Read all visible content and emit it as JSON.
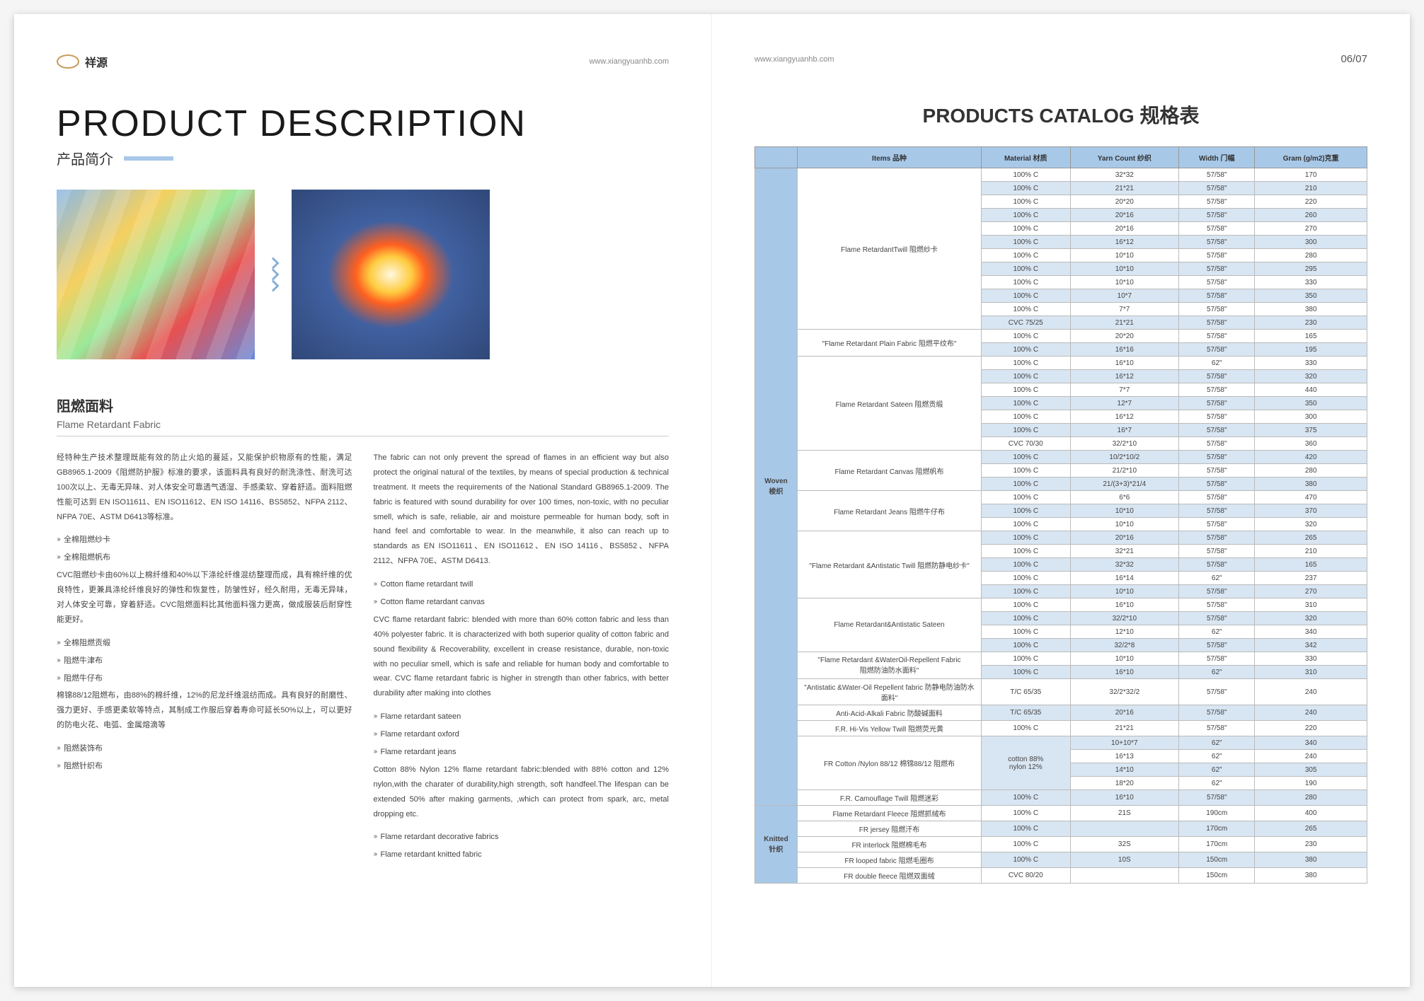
{
  "header": {
    "brand": "祥源",
    "url": "www.xiangyuanhb.com",
    "pagenum": "06/07"
  },
  "left": {
    "title_en": "PRODUCT DESCRIPTION",
    "title_cn": "产品简介",
    "sub_cn": "阻燃面料",
    "sub_en": "Flame Retardant Fabric",
    "col1_para": "经特种生产技术整理既能有效的防止火焰的蔓延，又能保护织物原有的性能，满足GB8965.1-2009《阻燃防护服》标准的要求，该面料具有良好的耐洗涤性、耐洗可达100次以上、无毒无异味、对人体安全可靠透气透湿、手感柔软、穿着舒适。面料阻燃性能可达到 EN ISO11611、EN ISO11612、EN ISO 14116、BS5852、NFPA 2112、NFPA 70E、ASTM D6413等标准。",
    "col1_bullets": [
      "全棉阻燃纱卡",
      "全棉阻燃帆布"
    ],
    "col1_para2": "CVC阻燃纱卡由60%以上棉纤维和40%以下涤纶纤维混纺整理而成，具有棉纤维的优良特性，更兼具涤纶纤维良好的弹性和恢复性，防皱性好，经久耐用，无毒无异味，对人体安全可靠，穿着舒适。CVC阻燃面料比其他面料强力更高，做成服装后耐穿性能更好。",
    "col1_bullets2": [
      "全棉阻燃贡缎",
      "阻燃牛津布",
      "阻燃牛仔布"
    ],
    "col1_para3": "棉锦88/12阻燃布，由88%的棉纤维，12%的尼龙纤维混纺而成。具有良好的耐磨性、强力更好、手感更柔软等特点，其制成工作服后穿着寿命可延长50%以上，可以更好的防电火花、电弧、金属熔滴等",
    "col1_bullets3": [
      "阻燃装饰布",
      "阻燃针织布"
    ],
    "col2_para": "The fabric can not only prevent the spread of flames in an efficient way but also protect the original natural of the textiles, by means of special production & technical treatment. It meets the requirements of the National Standard GB8965.1-2009. The fabric is featured with sound durability for over 100 times, non-toxic, with no peculiar smell, which is safe, reliable, air and moisture permeable for human body, soft in hand feel and comfortable to wear. In the meanwhile, it also can reach up to standards as EN ISO11611、EN ISO11612、EN ISO 14116、BS5852、NFPA 2112、NFPA 70E、ASTM D6413.",
    "col2_bullets": [
      "Cotton flame retardant twill",
      "Cotton flame retardant canvas"
    ],
    "col2_para2": "CVC flame retardant fabric: blended with more than 60% cotton fabric and less than 40% polyester fabric. It is characterized with both superior quality of cotton fabric and sound flexibility & Recoverability, excellent in crease resistance, durable, non-toxic with no peculiar smell, which is safe and reliable for human body and comfortable to wear. CVC flame retardant fabric is higher in strength than other fabrics, with better durability after making into clothes",
    "col2_bullets2": [
      "Flame retardant sateen",
      "Flame retardant oxford",
      "Flame retardant jeans"
    ],
    "col2_para3": "Cotton 88% Nylon 12% flame retardant fabric:blended with 88% cotton and 12% nylon,with the charater of durability,high strength, soft handfeel.The lifespan can be extended 50% after making garments, ,which can protect from spark, arc, metal dropping etc.",
    "col2_bullets3": [
      "Flame retardant decorative fabrics",
      "Flame retardant knitted fabric"
    ]
  },
  "right": {
    "title": "PRODUCTS CATALOG 规格表",
    "headers": [
      "",
      "Items 品种",
      "Material 材质",
      "Yarn Count 纱织",
      "Width 门幅",
      "Gram (g/m2)克重"
    ],
    "groups": [
      {
        "cat": "Woven\n梭织",
        "sections": [
          {
            "item": "Flame RetardantTwill 阻燃纱卡",
            "rows": [
              [
                "100% C",
                "32*32",
                "57/58\"",
                "170"
              ],
              [
                "100% C",
                "21*21",
                "57/58\"",
                "210"
              ],
              [
                "100% C",
                "20*20",
                "57/58\"",
                "220"
              ],
              [
                "100% C",
                "20*16",
                "57/58\"",
                "260"
              ],
              [
                "100% C",
                "20*16",
                "57/58\"",
                "270"
              ],
              [
                "100% C",
                "16*12",
                "57/58\"",
                "300"
              ],
              [
                "100% C",
                "10*10",
                "57/58\"",
                "280"
              ],
              [
                "100% C",
                "10*10",
                "57/58\"",
                "295"
              ],
              [
                "100% C",
                "10*10",
                "57/58\"",
                "330"
              ],
              [
                "100% C",
                "10*7",
                "57/58\"",
                "350"
              ],
              [
                "100% C",
                "7*7",
                "57/58\"",
                "380"
              ],
              [
                "CVC 75/25",
                "21*21",
                "57/58\"",
                "230"
              ]
            ]
          },
          {
            "item": "\"Flame Retardant Plain Fabric 阻燃平纹布\"",
            "rows": [
              [
                "100% C",
                "20*20",
                "57/58\"",
                "165"
              ],
              [
                "100% C",
                "16*16",
                "57/58\"",
                "195"
              ]
            ]
          },
          {
            "item": "Flame Retardant Sateen 阻燃贡缎",
            "rows": [
              [
                "100% C",
                "16*10",
                "62\"",
                "330"
              ],
              [
                "100% C",
                "16*12",
                "57/58\"",
                "320"
              ],
              [
                "100% C",
                "7*7",
                "57/58\"",
                "440"
              ],
              [
                "100% C",
                "12*7",
                "57/58\"",
                "350"
              ],
              [
                "100% C",
                "16*12",
                "57/58\"",
                "300"
              ],
              [
                "100% C",
                "16*7",
                "57/58\"",
                "375"
              ],
              [
                "CVC 70/30",
                "32/2*10",
                "57/58\"",
                "360"
              ]
            ]
          },
          {
            "item": "Flame Retardant Canvas 阻燃帆布",
            "rows": [
              [
                "100% C",
                "10/2*10/2",
                "57/58\"",
                "420"
              ],
              [
                "100% C",
                "21/2*10",
                "57/58\"",
                "280"
              ],
              [
                "100% C",
                "21/(3+3)*21/4",
                "57/58\"",
                "380"
              ]
            ]
          },
          {
            "item": "Flame Retardant Jeans 阻燃牛仔布",
            "rows": [
              [
                "100% C",
                "6*6",
                "57/58\"",
                "470"
              ],
              [
                "100% C",
                "10*10",
                "57/58\"",
                "370"
              ],
              [
                "100% C",
                "10*10",
                "57/58\"",
                "320"
              ]
            ]
          },
          {
            "item": "\"Flame Retardant &Antistatic Twill 阻燃防静电纱卡\"",
            "rows": [
              [
                "100% C",
                "20*16",
                "57/58\"",
                "265"
              ],
              [
                "100% C",
                "32*21",
                "57/58\"",
                "210"
              ],
              [
                "100% C",
                "32*32",
                "57/58\"",
                "165"
              ],
              [
                "100% C",
                "16*14",
                "62\"",
                "237"
              ],
              [
                "100% C",
                "10*10",
                "57/58\"",
                "270"
              ]
            ]
          },
          {
            "item": "Flame Retardant&Antistatic Sateen",
            "rows": [
              [
                "100% C",
                "16*10",
                "57/58\"",
                "310"
              ],
              [
                "100% C",
                "32/2*10",
                "57/58\"",
                "320"
              ],
              [
                "100% C",
                "12*10",
                "62\"",
                "340"
              ],
              [
                "100% C",
                "32/2*8",
                "57/58\"",
                "342"
              ]
            ]
          },
          {
            "item": "\"Flame Retardant &WaterOil-Repellent Fabric\n阻燃防油防水面料\"",
            "rows": [
              [
                "100% C",
                "10*10",
                "57/58\"",
                "330"
              ],
              [
                "100% C",
                "16*10",
                "62\"",
                "310"
              ]
            ]
          },
          {
            "item": "\"Antistatic &Water-Oil Repellent fabric 防静电防油防水面料\"",
            "rows": [
              [
                "T/C 65/35",
                "32/2*32/2",
                "57/58\"",
                "240"
              ]
            ]
          },
          {
            "item": "Anti-Acid-Alkali Fabric 防酸碱面料",
            "rows": [
              [
                "T/C 65/35",
                "20*16",
                "57/58\"",
                "240"
              ]
            ]
          },
          {
            "item": "F.R. Hi-Vis Yellow Twill 阻燃荧光黄",
            "rows": [
              [
                "100% C",
                "21*21",
                "57/58\"",
                "220"
              ]
            ]
          },
          {
            "item": "FR Cotton /Nylon 88/12 棉锦88/12 阻燃布",
            "rows": [
              [
                "cotton 88%\nnylon 12%",
                "10+10*7",
                "62\"",
                "340"
              ],
              [
                "",
                "16*13",
                "62\"",
                "240"
              ],
              [
                "",
                "14*10",
                "62\"",
                "305"
              ],
              [
                "",
                "18*20",
                "62\"",
                "190"
              ]
            ]
          },
          {
            "item": "F.R. Camouflage Twill 阻燃迷彩",
            "rows": [
              [
                "100% C",
                "16*10",
                "57/58\"",
                "280"
              ]
            ]
          }
        ]
      },
      {
        "cat": "Knitted\n针织",
        "sections": [
          {
            "item": "Flame Retardant Fleece 阻燃抓绒布",
            "rows": [
              [
                "100% C",
                "21S",
                "190cm",
                "400"
              ]
            ]
          },
          {
            "item": "FR jersey 阻燃汗布",
            "rows": [
              [
                "100% C",
                "",
                "170cm",
                "265"
              ]
            ]
          },
          {
            "item": "FR interlock 阻燃棉毛布",
            "rows": [
              [
                "100% C",
                "32S",
                "170cm",
                "230"
              ]
            ]
          },
          {
            "item": "FR looped fabric 阻燃毛圈布",
            "rows": [
              [
                "100% C",
                "10S",
                "150cm",
                "380"
              ]
            ]
          },
          {
            "item": "FR double fleece 阻燃双面绒",
            "rows": [
              [
                "CVC 80/20",
                "",
                "150cm",
                "380"
              ]
            ]
          }
        ]
      }
    ]
  }
}
